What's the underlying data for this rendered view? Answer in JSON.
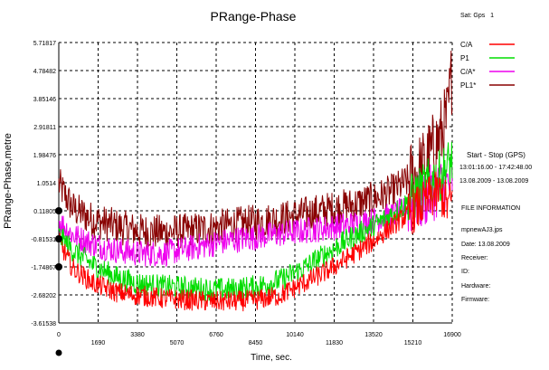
{
  "chart_data": {
    "type": "line",
    "title": "PRange-Phase",
    "xlabel": "Time, sec.",
    "ylabel": "PRange-Phase,metre",
    "x_ticks": [
      "0",
      "1690",
      "3380",
      "5070",
      "6760",
      "8450",
      "10140",
      "11830",
      "13520",
      "15210",
      "16900"
    ],
    "x_tick_values": [
      0,
      1690,
      3380,
      5070,
      6760,
      8450,
      10140,
      11830,
      13520,
      15210,
      16900
    ],
    "y_ticks": [
      "5.71817",
      "4.78482",
      "3.85146",
      "2.91811",
      "1.98476",
      "1.0514",
      "0.11805",
      "-0.81531",
      "-1.74867",
      "-2.68202",
      "-3.61538"
    ],
    "y_tick_values": [
      5.71817,
      4.78482,
      3.85146,
      2.91811,
      1.98476,
      1.0514,
      0.11805,
      -0.81531,
      -1.74867,
      -2.68202,
      -3.61538
    ],
    "xlim": [
      0,
      16900
    ],
    "ylim": [
      -3.61538,
      5.71817
    ],
    "grid": true,
    "legend_position": "right",
    "series": [
      {
        "name": "C/A",
        "color": "#ff0000",
        "x": [
          0,
          600,
          1500,
          2500,
          3400,
          4500,
          5500,
          6500,
          7500,
          8500,
          9500,
          10500,
          11500,
          12500,
          13500,
          14300,
          15000,
          15600,
          16000,
          16400,
          16700,
          16900
        ],
        "y": [
          -0.9,
          -1.8,
          -2.3,
          -2.6,
          -2.7,
          -2.8,
          -2.85,
          -2.9,
          -2.9,
          -2.85,
          -2.7,
          -2.3,
          -1.9,
          -1.4,
          -0.9,
          -0.4,
          0.0,
          0.3,
          0.6,
          0.7,
          0.3,
          0.5
        ],
        "noise": 0.35
      },
      {
        "name": "P1",
        "color": "#00dd00",
        "x": [
          0,
          600,
          1500,
          2500,
          3400,
          4500,
          5500,
          6500,
          7500,
          8500,
          9500,
          10500,
          11500,
          12500,
          13500,
          14300,
          15000,
          15600,
          16000,
          16400,
          16700,
          16900
        ],
        "y": [
          -0.7,
          -1.2,
          -1.7,
          -2.1,
          -2.3,
          -2.4,
          -2.45,
          -2.5,
          -2.5,
          -2.4,
          -2.2,
          -1.8,
          -1.3,
          -0.8,
          -0.4,
          0.0,
          0.4,
          0.8,
          1.1,
          1.3,
          1.6,
          1.8
        ],
        "noise": 0.4
      },
      {
        "name": "C/A*",
        "color": "#ee00ee",
        "x": [
          0,
          600,
          1500,
          2500,
          3400,
          4500,
          5500,
          6500,
          7500,
          8500,
          9500,
          10500,
          11500,
          12500,
          13500,
          14300,
          15000,
          15600,
          16000,
          16400,
          16700,
          16900
        ],
        "y": [
          -0.2,
          -0.7,
          -1.0,
          -1.2,
          -1.3,
          -1.3,
          -1.15,
          -1.0,
          -0.85,
          -0.75,
          -0.65,
          -0.55,
          -0.45,
          -0.35,
          -0.2,
          -0.05,
          0.2,
          0.45,
          0.7,
          0.9,
          1.0,
          1.2
        ],
        "noise": 0.45
      },
      {
        "name": "PL1*",
        "color": "#880000",
        "x": [
          0,
          600,
          1500,
          2500,
          3400,
          4500,
          5500,
          6500,
          7500,
          8500,
          9500,
          10500,
          11500,
          12500,
          13500,
          14300,
          15000,
          15600,
          16000,
          16400,
          16700,
          16900
        ],
        "y": [
          1.0,
          0.2,
          -0.2,
          -0.4,
          -0.55,
          -0.6,
          -0.55,
          -0.45,
          -0.35,
          -0.25,
          -0.15,
          0.0,
          0.15,
          0.3,
          0.5,
          0.75,
          1.1,
          1.5,
          2.0,
          2.6,
          3.2,
          4.8
        ],
        "noise": 0.6
      }
    ]
  },
  "sat_label": "Sat: Gps",
  "sat_value": "1",
  "start_stop_title": "Start - Stop (GPS)",
  "start_stop_time": "13:01:16.00 - 17:42:48.00",
  "start_stop_date": "13.08.2009 - 13.08.2009",
  "file_info_title": "FILE INFORMATION",
  "file_name": "mpnewAJ3.jps",
  "file_date": "Date: 13.08.2009",
  "receiver_label": "Receiver:",
  "id_label": "ID:",
  "hardware_label": "Hardware:",
  "firmware_label": "Firmware:"
}
